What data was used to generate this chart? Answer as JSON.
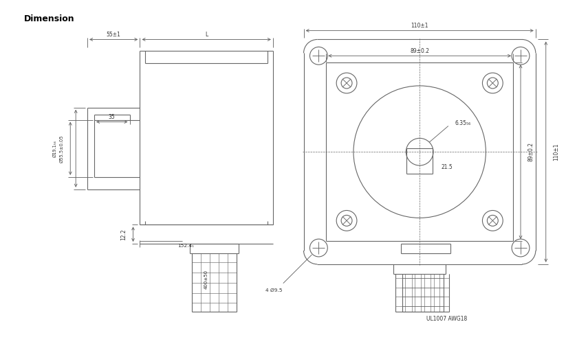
{
  "title": "Dimension",
  "bg_color": "#ffffff",
  "lc": "#666666",
  "lw": 0.8,
  "labels": {
    "shaft_len": "55±1",
    "body_len": "L",
    "shaft_dia_outer": "Ø55.5±0.05",
    "shaft_dia_inner": "Ø19.1₅₆",
    "keyway_len": "35",
    "pilot_dia": "152.4₁",
    "foot_h": "12.2",
    "face_outer_w": "110±1",
    "face_bolt_w": "89±0.2",
    "face_outer_h": "110±1",
    "face_bolt_h": "89±0.2",
    "shaft_hole": "6.35₅₆",
    "keyway_depth": "21.5",
    "wire_holes": "4 Ø9.5",
    "wire_label": "UL1007 AWG18",
    "cable_len": "400±50"
  }
}
